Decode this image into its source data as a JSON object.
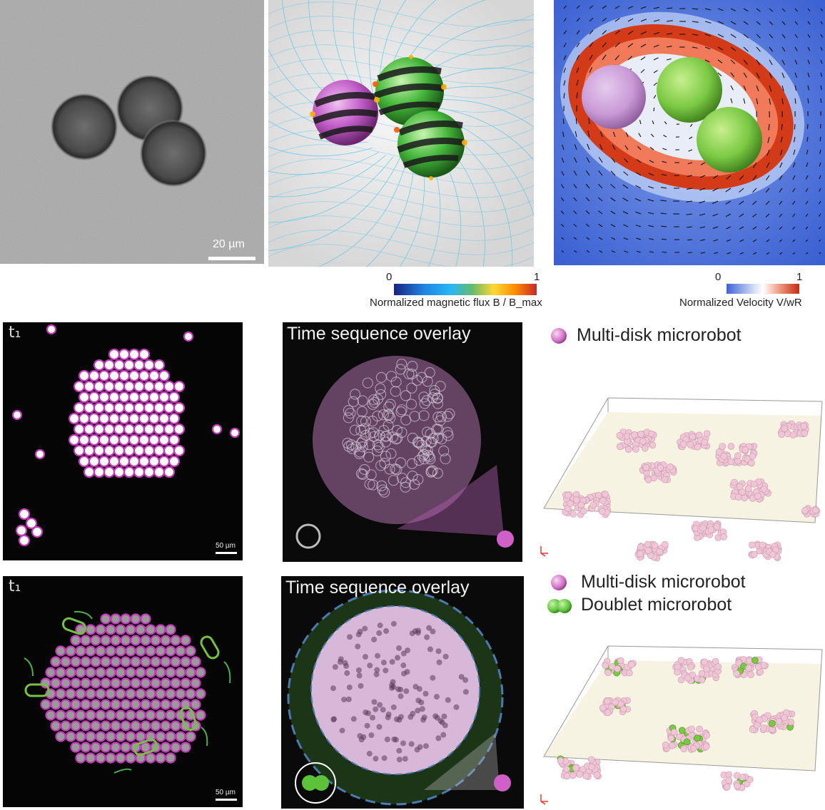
{
  "panel_top_left": {
    "scale_bar_label": "20 µm"
  },
  "panel_top_middle": {
    "colorbar": {
      "min_label": "0",
      "max_label": "1",
      "title": "Normalized magnetic flux B / B_max",
      "colors": [
        "#1a237e",
        "#1e88e5",
        "#29b6f6",
        "#66bb6a",
        "#fdd835",
        "#fb8c00",
        "#c62828"
      ]
    },
    "sphere_colors": [
      "#c25ec9",
      "#46b83c",
      "#46b83c"
    ]
  },
  "panel_top_right": {
    "colorbar": {
      "min_label": "0",
      "max_label": "1",
      "title": "Normalized Velocity V/wR",
      "colors": [
        "#3e63d8",
        "#c9d5f3",
        "#ffffff",
        "#f2a58f",
        "#c42a10"
      ]
    },
    "sphere_colors": [
      "#c99ad6",
      "#7ac943",
      "#7ac943"
    ]
  },
  "panel_mid_left": {
    "time_label": "t₁",
    "scale_bar_label": "50 µm"
  },
  "panel_mid_middle": {
    "title": "Time sequence overlay"
  },
  "panel_mid_right": {
    "legend": [
      {
        "label": "Multi-disk microrobot",
        "color": "#d98fd3"
      }
    ]
  },
  "panel_bot_left": {
    "time_label": "t₁",
    "scale_bar_label": "50 µm"
  },
  "panel_bot_middle": {
    "title": "Time sequence overlay"
  },
  "panel_bot_right": {
    "legend": [
      {
        "label": "Multi-disk microrobot",
        "color": "#d98fd3"
      },
      {
        "label": "Doublet microrobot",
        "color": "#5cc23a"
      }
    ]
  },
  "colors": {
    "magenta_ring": "#c23cb8",
    "pink_disk": "#e8b8d6",
    "doublet_green": "#76c043",
    "dark_bg": "#050505"
  }
}
